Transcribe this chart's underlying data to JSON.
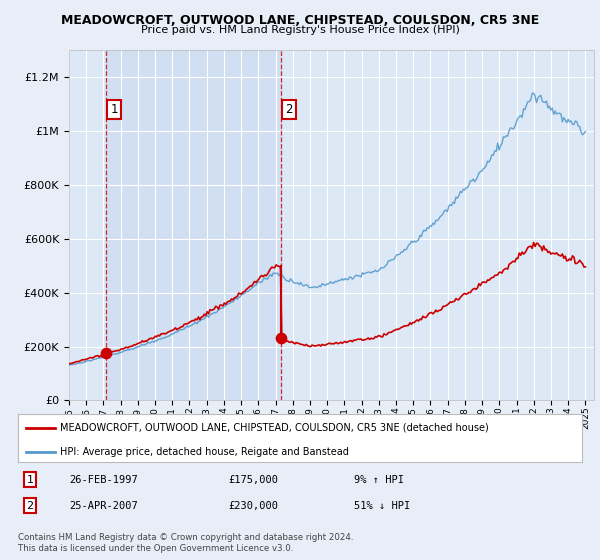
{
  "title": "MEADOWCROFT, OUTWOOD LANE, CHIPSTEAD, COULSDON, CR5 3NE",
  "subtitle": "Price paid vs. HM Land Registry's House Price Index (HPI)",
  "ylim": [
    0,
    1300000
  ],
  "yticks": [
    0,
    200000,
    400000,
    600000,
    800000,
    1000000,
    1200000
  ],
  "ytick_labels": [
    "£0",
    "£200K",
    "£400K",
    "£600K",
    "£800K",
    "£1M",
    "£1.2M"
  ],
  "hpi_color": "#5599cc",
  "price_color": "#cc0000",
  "sale1_year": 1997.15,
  "sale1_price": 175000,
  "sale1_label": "1",
  "sale2_year": 2007.31,
  "sale2_price": 230000,
  "sale2_label": "2",
  "legend_line1": "MEADOWCROFT, OUTWOOD LANE, CHIPSTEAD, COULSDON, CR5 3NE (detached house)",
  "legend_line2": "HPI: Average price, detached house, Reigate and Banstead",
  "table_row1": [
    "1",
    "26-FEB-1997",
    "£175,000",
    "9% ↑ HPI"
  ],
  "table_row2": [
    "2",
    "25-APR-2007",
    "£230,000",
    "51% ↓ HPI"
  ],
  "footer": "Contains HM Land Registry data © Crown copyright and database right 2024.\nThis data is licensed under the Open Government Licence v3.0.",
  "bg_color": "#e8eef8",
  "plot_bg": "#dce8f5",
  "shade_color": "#c8daf0"
}
